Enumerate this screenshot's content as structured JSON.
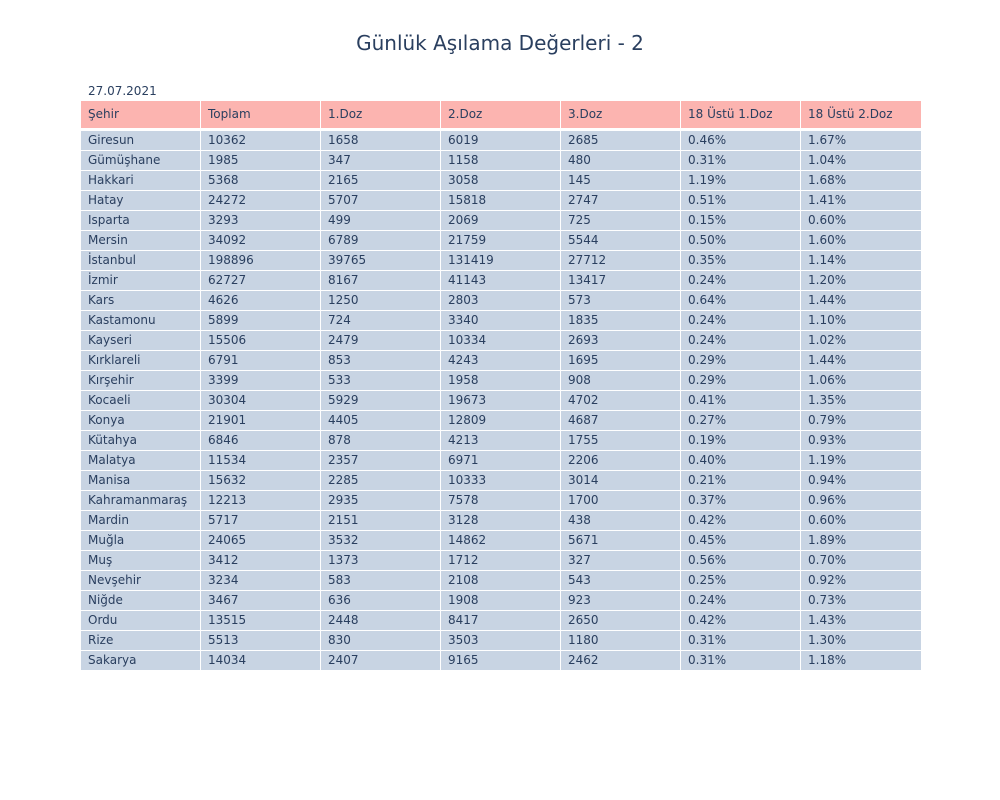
{
  "chart_data": {
    "type": "table",
    "title": "Günlük Aşılama Değerleri - 2",
    "subtitle": "27.07.2021",
    "columns": [
      "Şehir",
      "Toplam",
      "1.Doz",
      "2.Doz",
      "3.Doz",
      "18 Üstü 1.Doz",
      "18 Üstü 2.Doz"
    ],
    "rows": [
      [
        "Giresun",
        "10362",
        "1658",
        "6019",
        "2685",
        "0.46%",
        "1.67%"
      ],
      [
        "Gümüşhane",
        "1985",
        "347",
        "1158",
        "480",
        "0.31%",
        "1.04%"
      ],
      [
        "Hakkari",
        "5368",
        "2165",
        "3058",
        "145",
        "1.19%",
        "1.68%"
      ],
      [
        "Hatay",
        "24272",
        "5707",
        "15818",
        "2747",
        "0.51%",
        "1.41%"
      ],
      [
        "Isparta",
        "3293",
        "499",
        "2069",
        "725",
        "0.15%",
        "0.60%"
      ],
      [
        "Mersin",
        "34092",
        "6789",
        "21759",
        "5544",
        "0.50%",
        "1.60%"
      ],
      [
        "İstanbul",
        "198896",
        "39765",
        "131419",
        "27712",
        "0.35%",
        "1.14%"
      ],
      [
        "İzmir",
        "62727",
        "8167",
        "41143",
        "13417",
        "0.24%",
        "1.20%"
      ],
      [
        "Kars",
        "4626",
        "1250",
        "2803",
        "573",
        "0.64%",
        "1.44%"
      ],
      [
        "Kastamonu",
        "5899",
        "724",
        "3340",
        "1835",
        "0.24%",
        "1.10%"
      ],
      [
        "Kayseri",
        "15506",
        "2479",
        "10334",
        "2693",
        "0.24%",
        "1.02%"
      ],
      [
        "Kırklareli",
        "6791",
        "853",
        "4243",
        "1695",
        "0.29%",
        "1.44%"
      ],
      [
        "Kırşehir",
        "3399",
        "533",
        "1958",
        "908",
        "0.29%",
        "1.06%"
      ],
      [
        "Kocaeli",
        "30304",
        "5929",
        "19673",
        "4702",
        "0.41%",
        "1.35%"
      ],
      [
        "Konya",
        "21901",
        "4405",
        "12809",
        "4687",
        "0.27%",
        "0.79%"
      ],
      [
        "Kütahya",
        "6846",
        "878",
        "4213",
        "1755",
        "0.19%",
        "0.93%"
      ],
      [
        "Malatya",
        "11534",
        "2357",
        "6971",
        "2206",
        "0.40%",
        "1.19%"
      ],
      [
        "Manisa",
        "15632",
        "2285",
        "10333",
        "3014",
        "0.21%",
        "0.94%"
      ],
      [
        "Kahramanmaraş",
        "12213",
        "2935",
        "7578",
        "1700",
        "0.37%",
        "0.96%"
      ],
      [
        "Mardin",
        "5717",
        "2151",
        "3128",
        "438",
        "0.42%",
        "0.60%"
      ],
      [
        "Muğla",
        "24065",
        "3532",
        "14862",
        "5671",
        "0.45%",
        "1.89%"
      ],
      [
        "Muş",
        "3412",
        "1373",
        "1712",
        "327",
        "0.56%",
        "0.70%"
      ],
      [
        "Nevşehir",
        "3234",
        "583",
        "2108",
        "543",
        "0.25%",
        "0.92%"
      ],
      [
        "Niğde",
        "3467",
        "636",
        "1908",
        "923",
        "0.24%",
        "0.73%"
      ],
      [
        "Ordu",
        "13515",
        "2448",
        "8417",
        "2650",
        "0.42%",
        "1.43%"
      ],
      [
        "Rize",
        "5513",
        "830",
        "3503",
        "1180",
        "0.31%",
        "1.30%"
      ],
      [
        "Sakarya",
        "14034",
        "2407",
        "9165",
        "2462",
        "0.31%",
        "1.18%"
      ]
    ],
    "colors": {
      "header_fill": "#fcb4b0",
      "cell_fill": "#c8d4e3",
      "text": "#2a3f5f",
      "line": "#ffffff"
    }
  }
}
